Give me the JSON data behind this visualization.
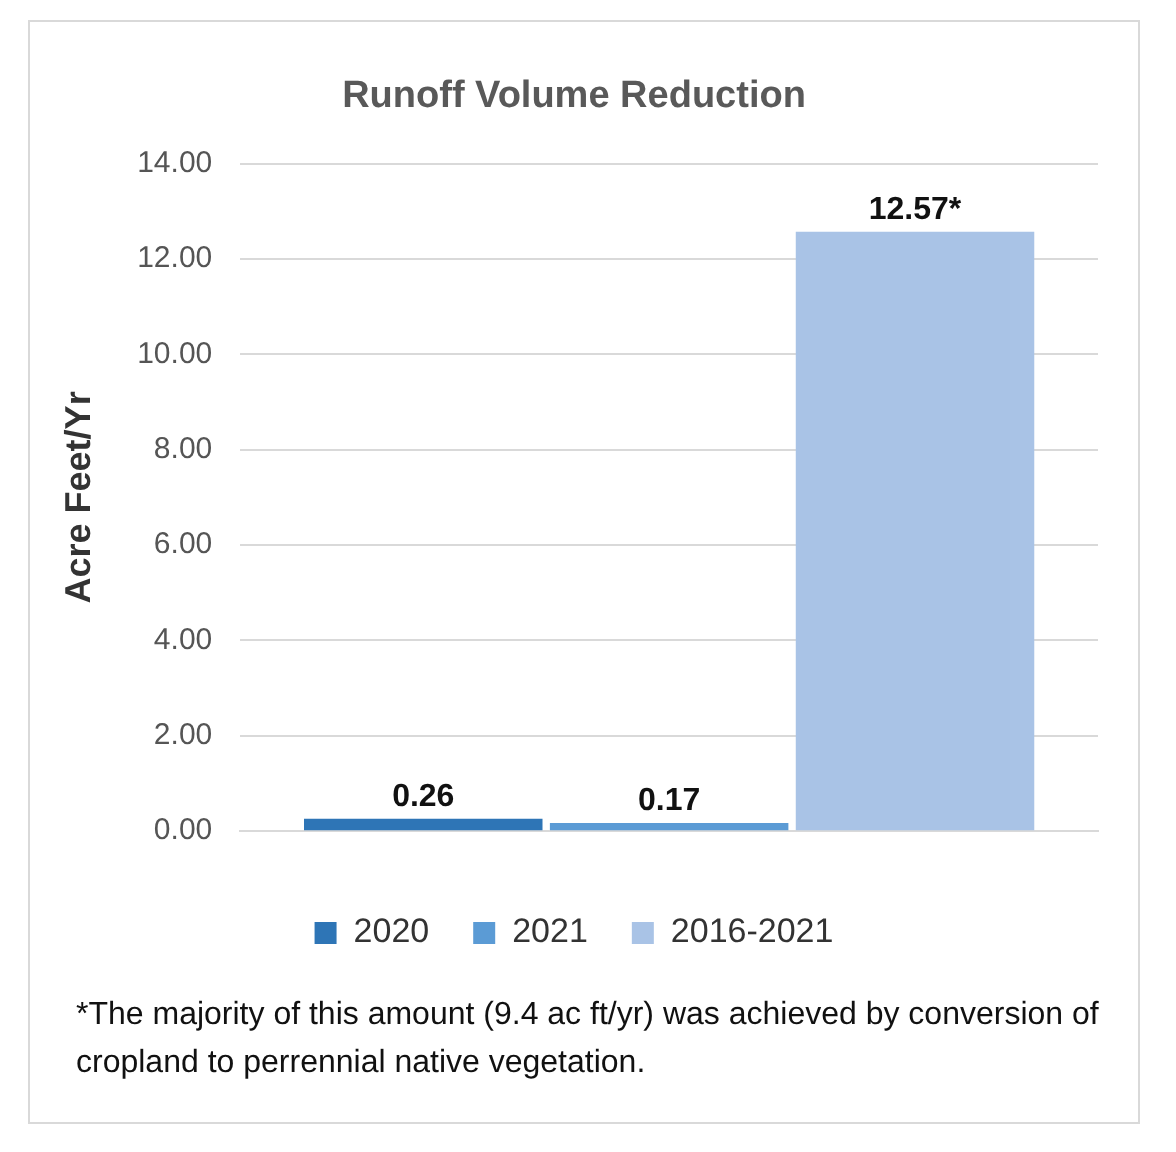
{
  "chart_data": {
    "type": "bar",
    "title": "Runoff Volume Reduction",
    "ylabel": "Acre Feet/Yr",
    "categories": [
      null
    ],
    "series": [
      {
        "name": "2020",
        "color": "#2e75b6",
        "values": [
          0.26
        ],
        "value_labels": [
          "0.26"
        ]
      },
      {
        "name": "2021",
        "color": "#5b9bd5",
        "values": [
          0.17
        ],
        "value_labels": [
          "0.17"
        ]
      },
      {
        "name": "2016-2021",
        "color": "#a9c3e6",
        "values": [
          12.57
        ],
        "value_labels": [
          "12.57*"
        ]
      }
    ],
    "ylim": [
      0,
      14
    ],
    "yticks": [
      {
        "value": 0,
        "label": "0.00"
      },
      {
        "value": 2,
        "label": "2.00"
      },
      {
        "value": 4,
        "label": "4.00"
      },
      {
        "value": 6,
        "label": "6.00"
      },
      {
        "value": 8,
        "label": "8.00"
      },
      {
        "value": 10,
        "label": "10.00"
      },
      {
        "value": 12,
        "label": "12.00"
      },
      {
        "value": 14,
        "label": "14.00"
      }
    ],
    "grid": "y",
    "legend": "bottom",
    "annotations": [
      "*The majority of this amount (9.4 ac ft/yr) was achieved by conversion of cropland to perrennial native vegetation."
    ]
  }
}
